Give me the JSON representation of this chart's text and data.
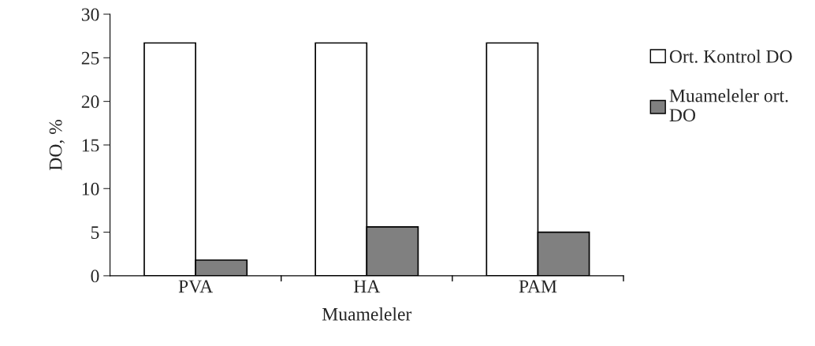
{
  "chart_data": {
    "type": "bar",
    "xlabel": "Muameleler",
    "ylabel": "DO, %",
    "categories": [
      "PVA",
      "HA",
      "PAM"
    ],
    "series": [
      {
        "name": "Ort. Kontrol DO",
        "color": "#ffffff",
        "values": [
          26.7,
          26.7,
          26.7
        ]
      },
      {
        "name": "Muameleler ort.\nDO",
        "color": "#808080",
        "values": [
          1.8,
          5.6,
          5.0
        ]
      }
    ],
    "ylim": [
      0,
      30
    ],
    "yticks": [
      0,
      5,
      10,
      15,
      20,
      25,
      30
    ],
    "grid": false,
    "legend": "right"
  }
}
